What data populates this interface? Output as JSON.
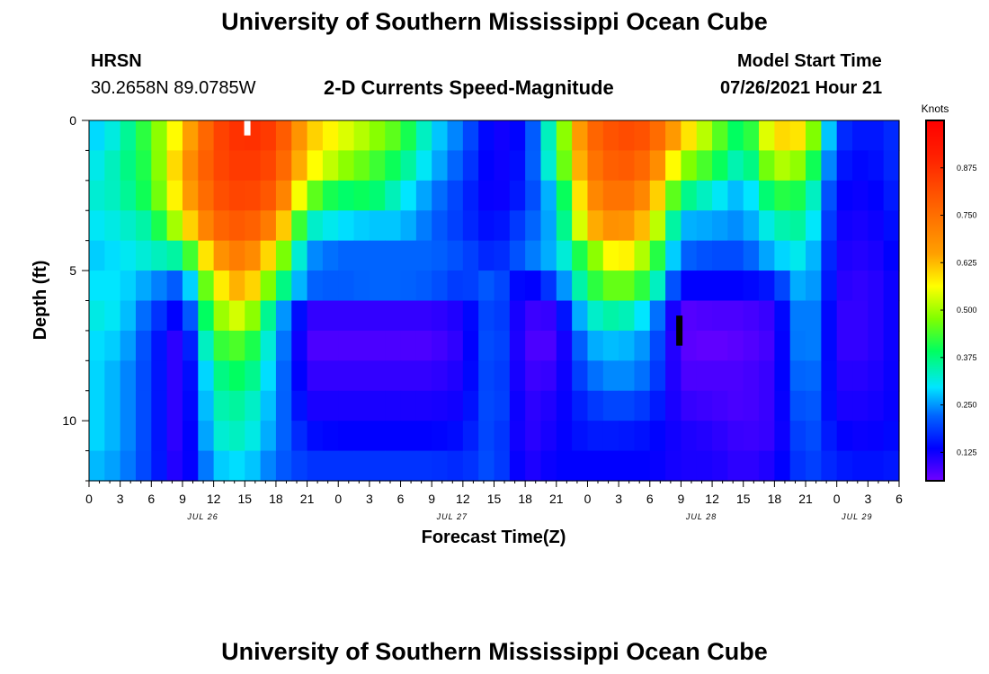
{
  "header": {
    "title": "University of Southern Mississippi Ocean Cube",
    "station": "HRSN",
    "coords": "30.2658N  89.0785W",
    "subtitle": "2-D Currents Speed-Magnitude",
    "model_label": "Model Start Time",
    "model_time": "07/26/2021 Hour 21"
  },
  "footer": {
    "title": "University of Southern Mississippi Ocean Cube"
  },
  "chart_data": {
    "type": "heatmap",
    "title": "2-D Currents Speed-Magnitude",
    "xlabel": "Forecast Time(Z)",
    "ylabel": "Depth (ft)",
    "x_tick_labels": [
      "0",
      "3",
      "6",
      "9",
      "12",
      "15",
      "18",
      "21",
      "0",
      "3",
      "6",
      "9",
      "12",
      "15",
      "18",
      "21",
      "0",
      "3",
      "6",
      "9",
      "12",
      "15",
      "18",
      "21",
      "0",
      "3",
      "6"
    ],
    "date_labels": [
      {
        "label": "JUL 26",
        "tick_index": 4
      },
      {
        "label": "JUL 27",
        "tick_index": 12
      },
      {
        "label": "JUL 28",
        "tick_index": 20
      },
      {
        "label": "JUL 29",
        "tick_index": 25
      }
    ],
    "y_ticks": [
      0,
      5,
      10
    ],
    "ylim": [
      0,
      12
    ],
    "xlim_hours": [
      0,
      78
    ],
    "colorbar": {
      "label": "Knots",
      "range": [
        0.05,
        1.0
      ],
      "ticks": [
        "0.125",
        "0.250",
        "0.375",
        "0.500",
        "0.625",
        "0.750",
        "0.875"
      ]
    },
    "depth_levels": [
      0.5,
      1.5,
      2.5,
      3.5,
      4.5,
      5.5,
      6.5,
      7.5,
      8.5,
      9.5,
      10.5,
      11.5
    ],
    "hour_samples": [
      0,
      3,
      6,
      9,
      12,
      15,
      18,
      21,
      24,
      27,
      30,
      33,
      36,
      39,
      42,
      45,
      48,
      51,
      54,
      57,
      60,
      63,
      66,
      69,
      72,
      75,
      78
    ],
    "speed_knots": [
      [
        0.28,
        0.33,
        0.45,
        0.6,
        0.82,
        0.88,
        0.84,
        0.62,
        0.55,
        0.5,
        0.44,
        0.3,
        0.22,
        0.12,
        0.15,
        0.4,
        0.75,
        0.82,
        0.8,
        0.62,
        0.48,
        0.36,
        0.6,
        0.58,
        0.18,
        0.15,
        0.18
      ],
      [
        0.3,
        0.35,
        0.43,
        0.65,
        0.82,
        0.86,
        0.82,
        0.58,
        0.5,
        0.45,
        0.38,
        0.28,
        0.2,
        0.12,
        0.16,
        0.38,
        0.72,
        0.8,
        0.75,
        0.5,
        0.42,
        0.32,
        0.52,
        0.48,
        0.16,
        0.14,
        0.18
      ],
      [
        0.32,
        0.34,
        0.42,
        0.62,
        0.8,
        0.84,
        0.78,
        0.48,
        0.38,
        0.4,
        0.32,
        0.24,
        0.18,
        0.12,
        0.17,
        0.3,
        0.68,
        0.76,
        0.68,
        0.38,
        0.32,
        0.26,
        0.42,
        0.4,
        0.14,
        0.13,
        0.17
      ],
      [
        0.3,
        0.32,
        0.36,
        0.55,
        0.76,
        0.8,
        0.7,
        0.34,
        0.3,
        0.28,
        0.28,
        0.22,
        0.18,
        0.14,
        0.2,
        0.28,
        0.62,
        0.7,
        0.6,
        0.27,
        0.26,
        0.24,
        0.34,
        0.36,
        0.13,
        0.12,
        0.16
      ],
      [
        0.28,
        0.3,
        0.33,
        0.36,
        0.66,
        0.74,
        0.55,
        0.25,
        0.22,
        0.22,
        0.22,
        0.22,
        0.2,
        0.16,
        0.22,
        0.28,
        0.45,
        0.6,
        0.48,
        0.22,
        0.2,
        0.2,
        0.28,
        0.32,
        0.12,
        0.11,
        0.15
      ],
      [
        0.3,
        0.3,
        0.25,
        0.2,
        0.55,
        0.66,
        0.42,
        0.22,
        0.21,
        0.22,
        0.22,
        0.21,
        0.18,
        0.22,
        0.12,
        0.2,
        0.4,
        0.48,
        0.4,
        0.14,
        0.14,
        0.14,
        0.16,
        0.3,
        0.11,
        0.1,
        0.14
      ],
      [
        0.32,
        0.3,
        0.2,
        0.12,
        0.48,
        0.55,
        0.3,
        0.1,
        0.1,
        0.1,
        0.1,
        0.1,
        0.12,
        0.22,
        0.09,
        0.1,
        0.32,
        0.36,
        0.28,
        0.07,
        0.08,
        0.08,
        0.1,
        0.28,
        0.1,
        0.1,
        0.14
      ],
      [
        0.3,
        0.28,
        0.18,
        0.08,
        0.42,
        0.45,
        0.28,
        0.08,
        0.08,
        0.08,
        0.08,
        0.08,
        0.11,
        0.23,
        0.08,
        0.08,
        0.26,
        0.28,
        0.24,
        0.07,
        0.06,
        0.07,
        0.09,
        0.28,
        0.1,
        0.1,
        0.14
      ],
      [
        0.3,
        0.26,
        0.18,
        0.08,
        0.36,
        0.4,
        0.26,
        0.1,
        0.1,
        0.1,
        0.1,
        0.1,
        0.12,
        0.22,
        0.09,
        0.1,
        0.22,
        0.25,
        0.22,
        0.08,
        0.08,
        0.08,
        0.1,
        0.26,
        0.11,
        0.11,
        0.14
      ],
      [
        0.3,
        0.26,
        0.18,
        0.08,
        0.34,
        0.36,
        0.25,
        0.12,
        0.12,
        0.12,
        0.12,
        0.12,
        0.13,
        0.22,
        0.1,
        0.12,
        0.18,
        0.2,
        0.18,
        0.1,
        0.09,
        0.08,
        0.1,
        0.24,
        0.12,
        0.12,
        0.14
      ],
      [
        0.3,
        0.26,
        0.18,
        0.08,
        0.32,
        0.34,
        0.24,
        0.15,
        0.14,
        0.14,
        0.14,
        0.14,
        0.15,
        0.21,
        0.1,
        0.13,
        0.16,
        0.16,
        0.15,
        0.12,
        0.11,
        0.09,
        0.1,
        0.22,
        0.14,
        0.13,
        0.15
      ],
      [
        0.28,
        0.25,
        0.18,
        0.09,
        0.28,
        0.3,
        0.22,
        0.18,
        0.18,
        0.18,
        0.18,
        0.18,
        0.17,
        0.21,
        0.11,
        0.14,
        0.14,
        0.14,
        0.14,
        0.12,
        0.12,
        0.1,
        0.12,
        0.2,
        0.16,
        0.15,
        0.16
      ]
    ],
    "markers": [
      {
        "hour": 15.2,
        "depth_from": 0,
        "depth_to": 0.5,
        "color": "#ffffff"
      },
      {
        "hour": 56.8,
        "depth_from": 6.5,
        "depth_to": 7.5,
        "color": "#000000"
      }
    ]
  }
}
